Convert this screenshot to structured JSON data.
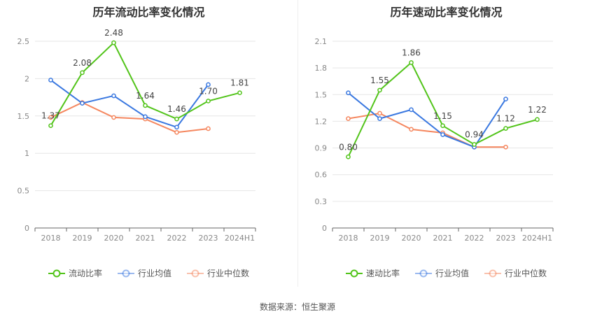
{
  "source": "数据来源：恒生聚源",
  "chart_data": [
    {
      "type": "line",
      "title": "历年流动比率变化情况",
      "categories": [
        "2018",
        "2019",
        "2020",
        "2021",
        "2022",
        "2023",
        "2024H1"
      ],
      "ylim": [
        0,
        2.5
      ],
      "yticks": [
        "0",
        "0.5",
        "1",
        "1.5",
        "2",
        "2.5"
      ],
      "yticks_values": [
        0,
        0.5,
        1,
        1.5,
        2,
        2.5
      ],
      "grid": true,
      "legend_position": "bottom",
      "series": [
        {
          "name": "流动比率",
          "color": "#52c41a",
          "values": [
            1.37,
            2.08,
            2.48,
            1.64,
            1.46,
            1.7,
            1.81
          ],
          "labels": [
            "1.37",
            "2.08",
            "2.48",
            "1.64",
            "1.46",
            "1.70",
            "1.81"
          ]
        },
        {
          "name": "行业均值",
          "color": "#3a78e0",
          "values": [
            1.98,
            1.67,
            1.77,
            1.49,
            1.35,
            1.92,
            null
          ]
        },
        {
          "name": "行业中位数",
          "color": "#f5875f",
          "values": [
            1.48,
            1.68,
            1.48,
            1.46,
            1.28,
            1.33,
            null
          ]
        }
      ]
    },
    {
      "type": "line",
      "title": "历年速动比率变化情况",
      "categories": [
        "2018",
        "2019",
        "2020",
        "2021",
        "2022",
        "2023",
        "2024H1"
      ],
      "ylim": [
        0,
        2.1
      ],
      "yticks": [
        "0",
        "0.3",
        "0.6",
        "0.9",
        "1.2",
        "1.5",
        "1.8",
        "2.1"
      ],
      "yticks_values": [
        0,
        0.3,
        0.6,
        0.9,
        1.2,
        1.5,
        1.8,
        2.1
      ],
      "grid": true,
      "legend_position": "bottom",
      "series": [
        {
          "name": "速动比率",
          "color": "#52c41a",
          "values": [
            0.8,
            1.55,
            1.86,
            1.15,
            0.94,
            1.12,
            1.22
          ],
          "labels": [
            "0.80",
            "1.55",
            "1.86",
            "1.15",
            "0.94",
            "1.12",
            "1.22"
          ]
        },
        {
          "name": "行业均值",
          "color": "#3a78e0",
          "values": [
            1.52,
            1.23,
            1.33,
            1.05,
            0.91,
            1.45,
            null
          ]
        },
        {
          "name": "行业中位数",
          "color": "#f5875f",
          "values": [
            1.23,
            1.29,
            1.11,
            1.07,
            0.91,
            0.91,
            null
          ]
        }
      ]
    }
  ]
}
